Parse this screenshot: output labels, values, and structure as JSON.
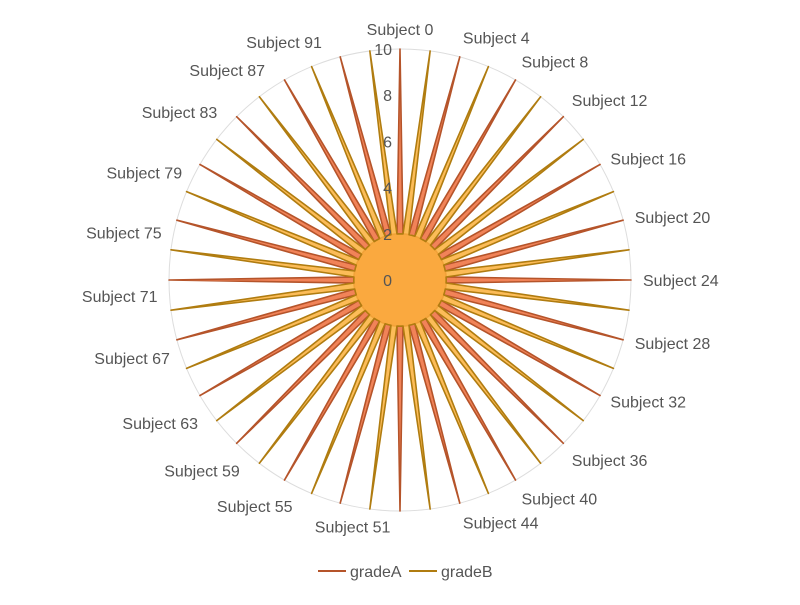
{
  "chart_data": {
    "type": "radar",
    "categories_count": 96,
    "category_prefix": "Subject ",
    "visible_category_labels": [
      "Subject 0",
      "Subject 4",
      "Subject 8",
      "Subject 12",
      "Subject 16",
      "Subject 20",
      "Subject 24",
      "Subject 28",
      "Subject 32",
      "Subject 36",
      "Subject 40",
      "Subject 44",
      "Subject 51",
      "Subject 55",
      "Subject 59",
      "Subject 63",
      "Subject 67",
      "Subject 71",
      "Subject 75",
      "Subject 79",
      "Subject 83",
      "Subject 87",
      "Subject 91"
    ],
    "radial_ticks": [
      "0",
      "2",
      "4",
      "6",
      "8",
      "10"
    ],
    "rlim": [
      0,
      10
    ],
    "series": [
      {
        "name": "gradeA",
        "pattern": [
          10,
          2,
          2,
          2
        ],
        "stroke": "#b5542a",
        "fill": "#f07c4f",
        "fill_opacity": 0.95
      },
      {
        "name": "gradeB",
        "pattern": [
          2,
          2,
          10,
          2
        ],
        "stroke": "#b07c10",
        "fill": "#fbb03b",
        "fill_opacity": 0.85
      }
    ],
    "grid": true,
    "legend_position": "bottom"
  },
  "colors": {
    "grid": "#dddddd",
    "label": "#555555",
    "gradeA_stroke": "#b5542a",
    "gradeB_stroke": "#b07c10"
  }
}
